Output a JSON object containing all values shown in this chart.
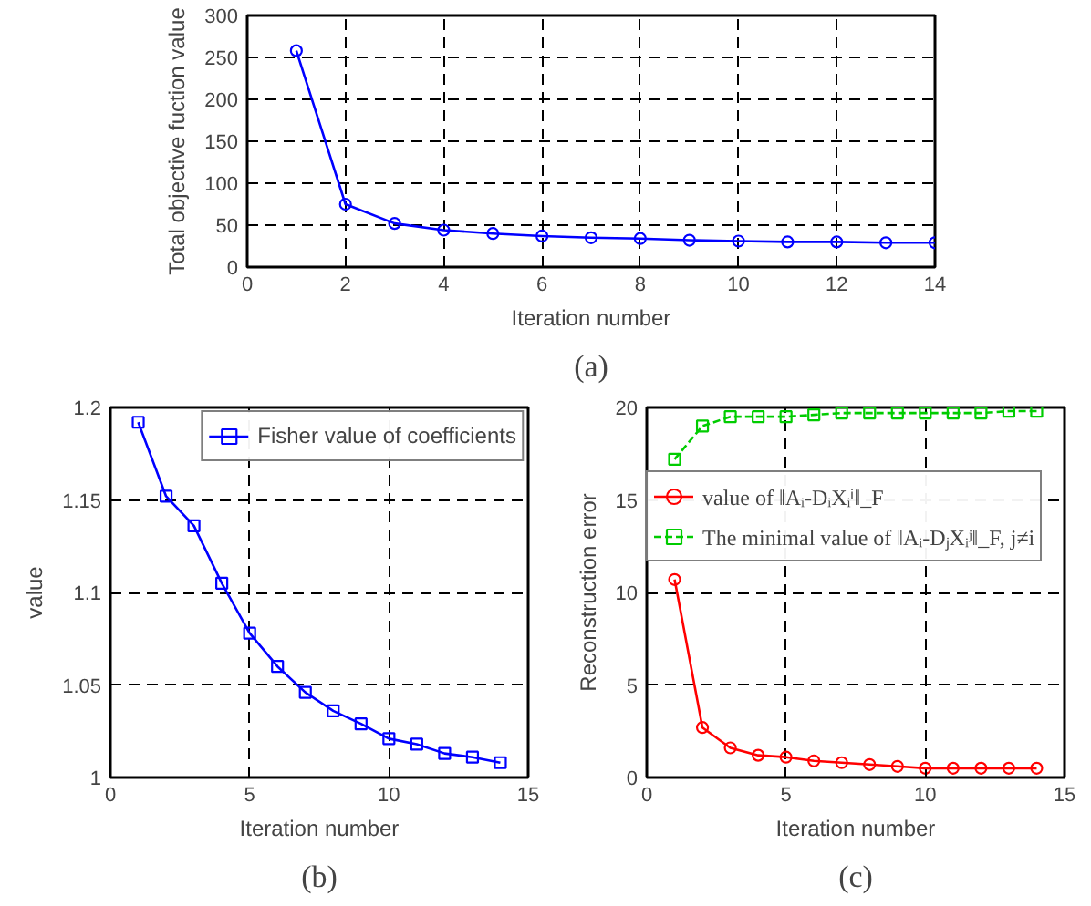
{
  "chart_data": [
    {
      "type": "line",
      "xlabel": "Iteration number",
      "ylabel": "Total objective fuction value",
      "annotations": [
        "(a)"
      ],
      "x": [
        1,
        2,
        3,
        4,
        5,
        6,
        7,
        8,
        9,
        10,
        11,
        12,
        13,
        14
      ],
      "series": [
        {
          "color": "#0000ff",
          "marker": "circle",
          "values": [
            258,
            75,
            52,
            44,
            40,
            37,
            35,
            34,
            32,
            31,
            30,
            30,
            29,
            29
          ]
        }
      ],
      "xlim": [
        0,
        14
      ],
      "ylim": [
        0,
        300
      ],
      "xticks": [
        0,
        2,
        4,
        6,
        8,
        10,
        12,
        14
      ],
      "yticks": [
        0,
        50,
        100,
        150,
        200,
        250,
        300
      ],
      "grid": true,
      "legend": false
    },
    {
      "type": "line",
      "xlabel": "Iteration number",
      "ylabel": "value",
      "annotations": [
        "(b)"
      ],
      "x": [
        1,
        2,
        3,
        4,
        5,
        6,
        7,
        8,
        9,
        10,
        11,
        12,
        13,
        14
      ],
      "series": [
        {
          "name": "Fisher value of coefficients",
          "color": "#0000ff",
          "marker": "square",
          "values": [
            1.192,
            1.152,
            1.136,
            1.105,
            1.078,
            1.06,
            1.046,
            1.036,
            1.029,
            1.021,
            1.018,
            1.013,
            1.011,
            1.008
          ]
        }
      ],
      "xlim": [
        0,
        15
      ],
      "ylim": [
        1,
        1.2
      ],
      "xticks": [
        0,
        5,
        10,
        15
      ],
      "yticks": [
        1,
        1.05,
        1.1,
        1.15,
        1.2
      ],
      "grid": true,
      "legend": "top right"
    },
    {
      "type": "line",
      "xlabel": "Iteration number",
      "ylabel": "Reconstruction error",
      "annotations": [
        "(c)"
      ],
      "x": [
        1,
        2,
        3,
        4,
        5,
        6,
        7,
        8,
        9,
        10,
        11,
        12,
        13,
        14
      ],
      "series": [
        {
          "name": "value of ‖Aᵢ-DᵢXᵢⁱ‖_F",
          "color": "#ff0000",
          "marker": "circle",
          "line_style": "solid",
          "values": [
            10.7,
            2.7,
            1.6,
            1.2,
            1.1,
            0.9,
            0.8,
            0.7,
            0.6,
            0.5,
            0.5,
            0.5,
            0.5,
            0.5
          ]
        },
        {
          "name": "The minimal value of ‖Aᵢ-DⱼXᵢʲ‖_F, j≠i",
          "color": "#00cc00",
          "marker": "square",
          "line_style": "dashed",
          "values": [
            17.2,
            19.0,
            19.5,
            19.5,
            19.5,
            19.6,
            19.7,
            19.7,
            19.7,
            19.7,
            19.7,
            19.7,
            19.8,
            19.8
          ]
        }
      ],
      "xlim": [
        0,
        15
      ],
      "ylim": [
        0,
        20
      ],
      "xticks": [
        0,
        5,
        10,
        15
      ],
      "yticks": [
        0,
        5,
        10,
        15,
        20
      ],
      "grid": true,
      "legend": "left"
    }
  ]
}
